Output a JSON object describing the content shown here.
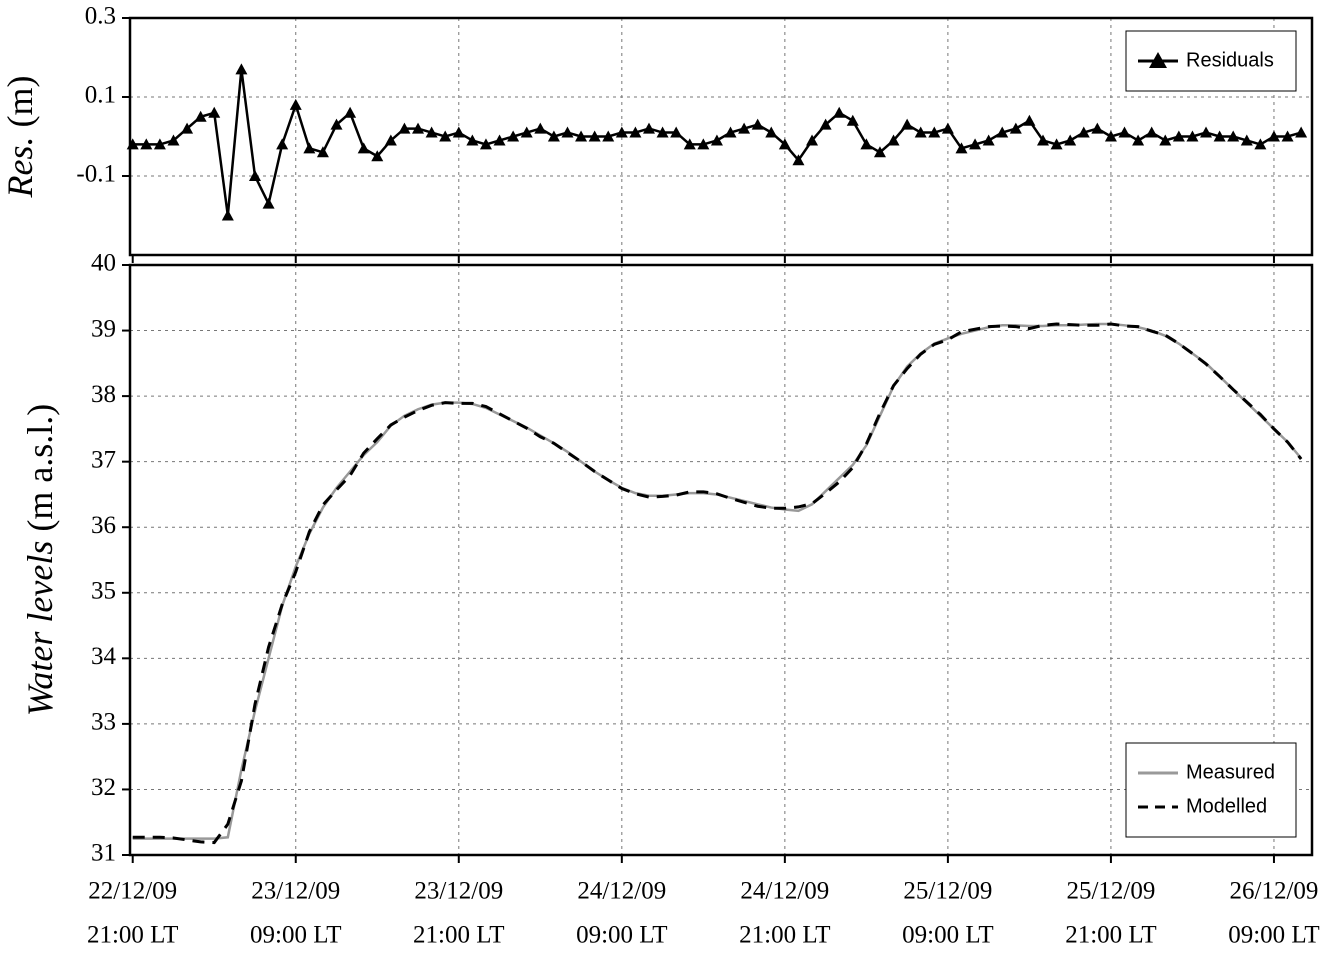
{
  "chart_data": [
    {
      "type": "line",
      "ylabel_italic": "Res.",
      "ylabel_units": "(m)",
      "x": [
        0,
        1,
        2,
        3,
        4,
        5,
        6,
        7,
        8,
        9,
        10,
        11,
        12,
        13,
        14,
        15,
        16,
        17,
        18,
        19,
        20,
        21,
        22,
        23,
        24,
        25,
        26,
        27,
        28,
        29,
        30,
        31,
        32,
        33,
        34,
        35,
        36,
        37,
        38,
        39,
        40,
        41,
        42,
        43,
        44,
        45,
        46,
        47,
        48,
        49,
        50,
        51,
        52,
        53,
        54,
        55,
        56,
        57,
        58,
        59,
        60,
        61,
        62,
        63,
        64,
        65,
        66,
        67,
        68,
        69,
        70,
        71,
        72,
        73,
        74,
        75,
        76,
        77,
        78,
        79,
        80,
        81,
        82,
        83,
        84,
        85,
        86
      ],
      "series": [
        {
          "name": "Residuals",
          "color": "#000000",
          "marker": "triangle",
          "values": [
            -0.02,
            -0.02,
            -0.02,
            -0.01,
            0.02,
            0.05,
            0.06,
            -0.2,
            0.17,
            -0.1,
            -0.17,
            -0.02,
            0.08,
            -0.03,
            -0.04,
            0.03,
            0.06,
            -0.03,
            -0.05,
            -0.01,
            0.02,
            0.02,
            0.01,
            0.0,
            0.01,
            -0.01,
            -0.02,
            -0.01,
            0.0,
            0.01,
            0.02,
            0.0,
            0.01,
            0.0,
            0.0,
            0.0,
            0.01,
            0.01,
            0.02,
            0.01,
            0.01,
            -0.02,
            -0.02,
            -0.01,
            0.01,
            0.02,
            0.03,
            0.01,
            -0.02,
            -0.06,
            -0.01,
            0.03,
            0.06,
            0.04,
            -0.02,
            -0.04,
            -0.01,
            0.03,
            0.01,
            0.01,
            0.02,
            -0.03,
            -0.02,
            -0.01,
            0.01,
            0.02,
            0.04,
            -0.01,
            -0.02,
            -0.01,
            0.01,
            0.02,
            0.0,
            0.01,
            -0.01,
            0.01,
            -0.01,
            0.0,
            0.0,
            0.01,
            0.0,
            0.0,
            -0.01,
            -0.02,
            0.0,
            0.0,
            0.01
          ]
        }
      ],
      "xlim": [
        -0.2,
        86.8
      ],
      "ylim": [
        -0.3,
        0.3
      ],
      "yticks": [
        -0.1,
        0.1,
        0.3
      ],
      "grid": true,
      "legend": "upper right"
    },
    {
      "type": "line",
      "ylabel_italic": "Water levels",
      "ylabel_units": "(m a.s.l.)",
      "x": [
        0,
        1,
        2,
        3,
        4,
        5,
        6,
        7,
        8,
        9,
        10,
        11,
        12,
        13,
        14,
        15,
        16,
        17,
        18,
        19,
        20,
        21,
        22,
        23,
        24,
        25,
        26,
        27,
        28,
        29,
        30,
        31,
        32,
        33,
        34,
        35,
        36,
        37,
        38,
        39,
        40,
        41,
        42,
        43,
        44,
        45,
        46,
        47,
        48,
        49,
        50,
        51,
        52,
        53,
        54,
        55,
        56,
        57,
        58,
        59,
        60,
        61,
        62,
        63,
        64,
        65,
        66,
        67,
        68,
        69,
        70,
        71,
        72,
        73,
        74,
        75,
        76,
        77,
        78,
        79,
        80,
        81,
        82,
        83,
        84,
        85,
        86
      ],
      "series": [
        {
          "name": "Measured",
          "color": "#999999",
          "dash": false,
          "values": [
            31.25,
            31.25,
            31.25,
            31.25,
            31.25,
            31.25,
            31.25,
            31.27,
            32.3,
            33.2,
            34.0,
            34.8,
            35.4,
            35.9,
            36.3,
            36.6,
            36.85,
            37.1,
            37.3,
            37.55,
            37.7,
            37.8,
            37.87,
            37.9,
            37.9,
            37.88,
            37.82,
            37.72,
            37.62,
            37.52,
            37.4,
            37.28,
            37.15,
            37.0,
            36.85,
            36.72,
            36.6,
            36.52,
            36.48,
            36.48,
            36.5,
            36.52,
            36.52,
            36.5,
            36.45,
            36.4,
            36.35,
            36.3,
            36.27,
            36.25,
            36.35,
            36.55,
            36.75,
            36.95,
            37.25,
            37.7,
            38.15,
            38.45,
            38.65,
            38.8,
            38.88,
            38.95,
            39.0,
            39.05,
            39.08,
            39.08,
            39.07,
            39.07,
            39.08,
            39.08,
            39.09,
            39.1,
            39.1,
            39.08,
            39.05,
            39.0,
            38.92,
            38.8,
            38.65,
            38.5,
            38.3,
            38.1,
            37.9,
            37.7,
            37.5,
            37.3,
            37.05
          ]
        },
        {
          "name": "Modelled",
          "color": "#000000",
          "dash": true,
          "values": [
            31.27,
            31.27,
            31.27,
            31.26,
            31.23,
            31.2,
            31.19,
            31.47,
            32.13,
            33.3,
            34.17,
            34.82,
            35.32,
            35.93,
            36.34,
            36.57,
            36.79,
            37.13,
            37.35,
            37.56,
            37.68,
            37.78,
            37.86,
            37.9,
            37.89,
            37.89,
            37.84,
            37.73,
            37.62,
            37.51,
            37.38,
            37.28,
            37.14,
            37.0,
            36.85,
            36.72,
            36.59,
            36.51,
            36.46,
            36.47,
            36.49,
            36.54,
            36.54,
            36.51,
            36.44,
            36.38,
            36.32,
            36.29,
            36.29,
            36.31,
            36.36,
            36.52,
            36.69,
            36.91,
            37.27,
            37.74,
            38.16,
            38.42,
            38.64,
            38.79,
            38.86,
            38.98,
            39.02,
            39.06,
            39.07,
            39.06,
            39.03,
            39.08,
            39.1,
            39.09,
            39.08,
            39.08,
            39.1,
            39.07,
            39.06,
            38.99,
            38.93,
            38.8,
            38.65,
            38.49,
            38.3,
            38.1,
            37.91,
            37.72,
            37.5,
            37.3,
            37.04
          ]
        }
      ],
      "xlim": [
        -0.2,
        86.8
      ],
      "ylim": [
        31,
        40
      ],
      "yticks": [
        31,
        32,
        33,
        34,
        35,
        36,
        37,
        38,
        39,
        40
      ],
      "xticks": [
        {
          "value": 0,
          "label": [
            "22/12/09",
            "21:00 LT"
          ]
        },
        {
          "value": 12,
          "label": [
            "23/12/09",
            "09:00 LT"
          ]
        },
        {
          "value": 24,
          "label": [
            "23/12/09",
            "21:00 LT"
          ]
        },
        {
          "value": 36,
          "label": [
            "24/12/09",
            "09:00 LT"
          ]
        },
        {
          "value": 48,
          "label": [
            "24/12/09",
            "21:00 LT"
          ]
        },
        {
          "value": 60,
          "label": [
            "25/12/09",
            "09:00 LT"
          ]
        },
        {
          "value": 72,
          "label": [
            "25/12/09",
            "21:00 LT"
          ]
        },
        {
          "value": 84,
          "label": [
            "26/12/09",
            "09:00 LT"
          ]
        }
      ],
      "grid": true,
      "legend": "lower right"
    }
  ]
}
